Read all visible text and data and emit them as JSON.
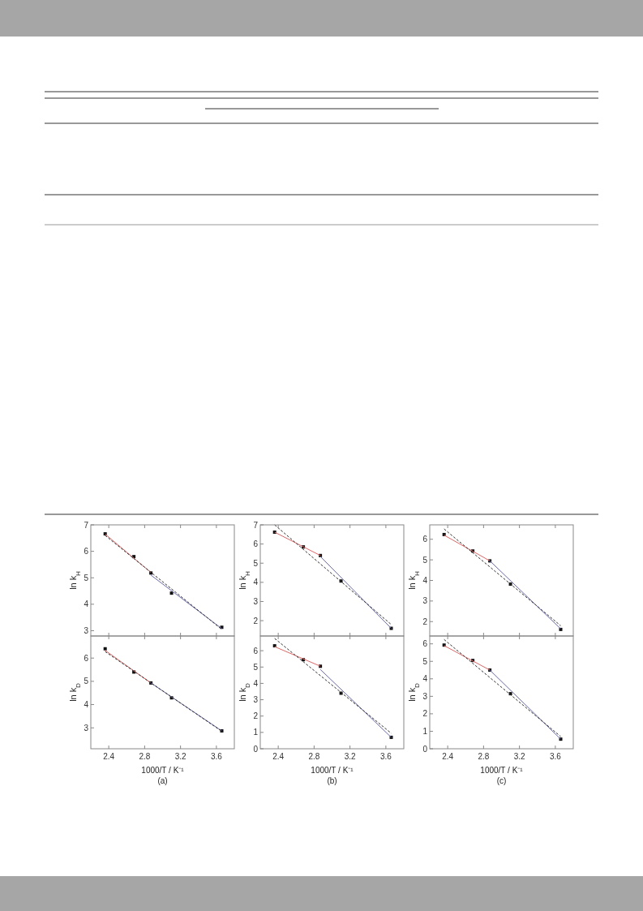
{
  "chart_data": [
    {
      "type": "scatter",
      "ylabel": "ln k$_{H}$",
      "xlim": [
        2.2,
        3.8
      ],
      "xticks": [
        2.4,
        2.8,
        3.2,
        3.6
      ],
      "ylim": [
        2.8,
        7.0
      ],
      "yticks": [
        3,
        4,
        5,
        6,
        7
      ],
      "tick_labels": "y",
      "x": [
        2.36,
        2.68,
        2.87,
        3.1,
        3.66
      ],
      "series": [
        {
          "type": "scatter",
          "color": "#111111",
          "marker": "square",
          "values": [
            6.66,
            5.8,
            5.18,
            4.42,
            3.13
          ]
        },
        {
          "type": "line",
          "color": "#e06666",
          "x": [
            2.36,
            2.87
          ],
          "values": [
            6.65,
            5.2
          ]
        },
        {
          "type": "line",
          "color": "#6a6aaa",
          "x": [
            2.87,
            3.66
          ],
          "values": [
            5.1,
            3.08
          ]
        },
        {
          "type": "line",
          "color": "#333333",
          "line_style": "dashed",
          "x": [
            2.36,
            3.66
          ],
          "values": [
            6.6,
            3.05
          ]
        }
      ]
    },
    {
      "type": "scatter",
      "ylabel": "ln k$_{H}$",
      "xlim": [
        2.2,
        3.8
      ],
      "xticks": [
        2.4,
        2.8,
        3.2,
        3.6
      ],
      "ylim": [
        1.2,
        7.0
      ],
      "yticks": [
        2,
        3,
        4,
        5,
        6,
        7
      ],
      "tick_labels": "y",
      "x": [
        2.36,
        2.68,
        2.87,
        3.1,
        3.66
      ],
      "series": [
        {
          "type": "scatter",
          "color": "#111111",
          "marker": "square",
          "values": [
            6.62,
            5.85,
            5.4,
            4.07,
            1.6
          ]
        },
        {
          "type": "line",
          "color": "#e06666",
          "x": [
            2.36,
            2.87
          ],
          "values": [
            6.62,
            5.4
          ]
        },
        {
          "type": "line",
          "color": "#6a6aaa",
          "x": [
            2.87,
            3.66
          ],
          "values": [
            5.35,
            1.6
          ]
        },
        {
          "type": "line",
          "color": "#333333",
          "line_style": "dashed",
          "x": [
            2.36,
            3.66
          ],
          "values": [
            7.0,
            1.8
          ]
        }
      ]
    },
    {
      "type": "scatter",
      "ylabel": "ln k$_{H}$",
      "xlim": [
        2.2,
        3.8
      ],
      "xticks": [
        2.4,
        2.8,
        3.2,
        3.6
      ],
      "ylim": [
        1.3,
        6.7
      ],
      "yticks": [
        2,
        3,
        4,
        5,
        6
      ],
      "tick_labels": "y",
      "x": [
        2.36,
        2.68,
        2.87,
        3.1,
        3.66
      ],
      "series": [
        {
          "type": "scatter",
          "color": "#111111",
          "marker": "square",
          "values": [
            6.23,
            5.43,
            4.95,
            3.82,
            1.62
          ]
        },
        {
          "type": "line",
          "color": "#e06666",
          "x": [
            2.36,
            2.87
          ],
          "values": [
            6.2,
            4.95
          ]
        },
        {
          "type": "line",
          "color": "#6a6aaa",
          "x": [
            2.87,
            3.66
          ],
          "values": [
            4.95,
            1.65
          ]
        },
        {
          "type": "line",
          "color": "#333333",
          "line_style": "dashed",
          "x": [
            2.36,
            3.66
          ],
          "values": [
            6.5,
            1.8
          ]
        }
      ]
    },
    {
      "type": "scatter",
      "ylabel": "ln k$_{D}$",
      "xlabel": "1000/T / K⁻¹",
      "annotations": [
        "(a)"
      ],
      "xlim": [
        2.2,
        3.8
      ],
      "xticks": [
        2.4,
        2.8,
        3.2,
        3.6
      ],
      "ylim": [
        2.1,
        6.95
      ],
      "yticks": [
        3,
        4,
        5,
        6
      ],
      "x": [
        2.36,
        2.68,
        2.87,
        3.1,
        3.66
      ],
      "series": [
        {
          "type": "scatter",
          "color": "#111111",
          "marker": "square",
          "values": [
            6.4,
            5.4,
            4.93,
            4.29,
            2.87
          ]
        },
        {
          "type": "line",
          "color": "#e06666",
          "x": [
            2.36,
            2.87
          ],
          "values": [
            6.33,
            4.93
          ]
        },
        {
          "type": "line",
          "color": "#6a6aaa",
          "x": [
            2.87,
            3.66
          ],
          "values": [
            4.93,
            2.87
          ]
        },
        {
          "type": "line",
          "color": "#333333",
          "line_style": "dashed",
          "x": [
            2.36,
            3.66
          ],
          "values": [
            6.28,
            2.85
          ]
        }
      ]
    },
    {
      "type": "scatter",
      "ylabel": "ln k$_{D}$",
      "xlabel": "1000/T / K⁻¹",
      "annotations": [
        "(b)"
      ],
      "xlim": [
        2.2,
        3.8
      ],
      "xticks": [
        2.4,
        2.8,
        3.2,
        3.6
      ],
      "ylim": [
        0,
        6.9
      ],
      "yticks": [
        0,
        1,
        2,
        3,
        4,
        5,
        6
      ],
      "x": [
        2.36,
        2.68,
        2.87,
        3.1,
        3.66
      ],
      "series": [
        {
          "type": "scatter",
          "color": "#111111",
          "marker": "square",
          "values": [
            6.3,
            5.45,
            5.05,
            3.4,
            0.7
          ]
        },
        {
          "type": "line",
          "color": "#e06666",
          "x": [
            2.36,
            2.87
          ],
          "values": [
            6.25,
            5.05
          ]
        },
        {
          "type": "line",
          "color": "#6a6aaa",
          "x": [
            2.87,
            3.66
          ],
          "values": [
            4.85,
            0.7
          ]
        },
        {
          "type": "line",
          "color": "#333333",
          "line_style": "dashed",
          "x": [
            2.36,
            3.66
          ],
          "values": [
            6.75,
            0.95
          ]
        }
      ]
    },
    {
      "type": "scatter",
      "ylabel": "ln k$_{D}$",
      "xlabel": "1000/T / K⁻¹",
      "annotations": [
        "(c)"
      ],
      "xlim": [
        2.2,
        3.8
      ],
      "xticks": [
        2.4,
        2.8,
        3.2,
        3.6
      ],
      "ylim": [
        0,
        6.45
      ],
      "yticks": [
        0,
        1,
        2,
        3,
        4,
        5,
        6
      ],
      "x": [
        2.36,
        2.68,
        2.87,
        3.1,
        3.66
      ],
      "series": [
        {
          "type": "scatter",
          "color": "#111111",
          "marker": "square",
          "values": [
            5.93,
            5.05,
            4.5,
            3.15,
            0.55
          ]
        },
        {
          "type": "line",
          "color": "#e06666",
          "x": [
            2.36,
            2.87
          ],
          "values": [
            5.9,
            4.5
          ]
        },
        {
          "type": "line",
          "color": "#6a6aaa",
          "x": [
            2.87,
            3.66
          ],
          "values": [
            4.5,
            0.55
          ]
        },
        {
          "type": "line",
          "color": "#333333",
          "line_style": "dashed",
          "x": [
            2.36,
            3.66
          ],
          "values": [
            6.25,
            0.7
          ]
        }
      ]
    }
  ]
}
